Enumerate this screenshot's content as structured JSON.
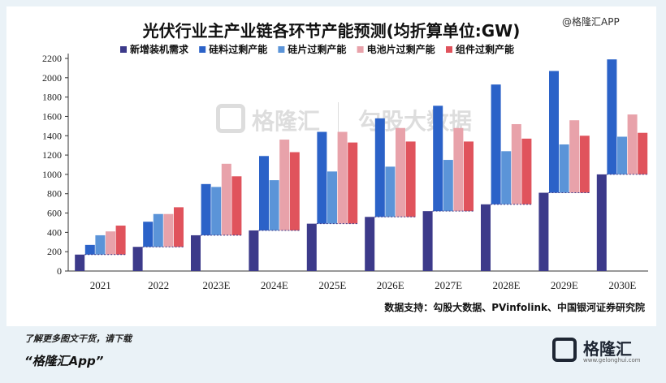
{
  "title": "光伏行业主产业链各环节产能预测(均折算单位:GW)",
  "corner_watermark": "@格隆汇APP",
  "source": "数据支持：勾股大数据、PVinfolink、中国银河证券研究院",
  "footer": {
    "line1": "了解更多图文干货，请下载",
    "line2": "“格隆汇App”",
    "logo_name": "格隆汇",
    "logo_url": "www.gelonghui.com"
  },
  "watermark": {
    "left": "格隆汇",
    "right": "勾股大数据",
    "left_url": "www.gelonghui.com",
    "right_url": "www.gogudata.com"
  },
  "chart_data": {
    "type": "bar",
    "categories": [
      "2021",
      "2022",
      "2023E",
      "2024E",
      "2025E",
      "2026E",
      "2027E",
      "2028E",
      "2029E",
      "2030E"
    ],
    "ylim": [
      0,
      2200
    ],
    "yticks": [
      0,
      200,
      400,
      600,
      800,
      1000,
      1200,
      1400,
      1600,
      1800,
      2000,
      2200
    ],
    "legend_position": "top",
    "series": [
      {
        "name": "新增装机需求",
        "color": "#3c3a8a",
        "values": [
          170,
          250,
          370,
          420,
          490,
          560,
          620,
          690,
          810,
          1000
        ]
      },
      {
        "name": "硅料过剩产能",
        "color": "#2b62c8",
        "values": [
          270,
          510,
          900,
          1190,
          1440,
          1580,
          1710,
          1930,
          2070,
          2190
        ]
      },
      {
        "name": "硅片过剩产能",
        "color": "#5b94d8",
        "values": [
          370,
          590,
          870,
          940,
          1030,
          1080,
          1150,
          1240,
          1310,
          1390
        ]
      },
      {
        "name": "电池片过剩产能",
        "color": "#e8a2aa",
        "values": [
          410,
          590,
          1110,
          1360,
          1440,
          1480,
          1480,
          1520,
          1560,
          1620
        ]
      },
      {
        "name": "组件过剩产能",
        "color": "#e0535c",
        "values": [
          470,
          660,
          980,
          1230,
          1330,
          1340,
          1340,
          1370,
          1400,
          1430
        ]
      }
    ]
  }
}
